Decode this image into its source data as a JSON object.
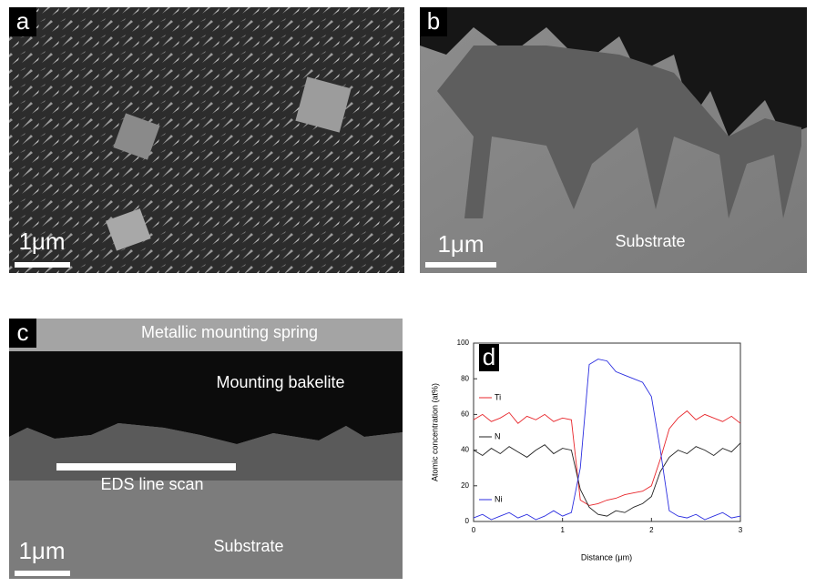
{
  "panels": [
    {
      "label": "a",
      "scale_bar": "1μm"
    },
    {
      "label": "b",
      "scale_bar": "1μm",
      "annotations": [
        "Substrate"
      ]
    },
    {
      "label": "c",
      "scale_bar": "1μm",
      "annotations": [
        "Metallic mounting spring",
        "Mounting bakelite",
        "EDS line scan",
        "Substrate"
      ]
    }
  ],
  "chart_data": {
    "type": "line",
    "label": "d",
    "x_label": "Distance (μm)",
    "y_label": "Atomic concentration (at%)",
    "xlim": [
      0,
      3
    ],
    "ylim": [
      0,
      100
    ],
    "xticks": [
      0,
      1,
      2,
      3
    ],
    "yticks": [
      0,
      20,
      40,
      60,
      80,
      100
    ],
    "x": [
      0,
      0.1,
      0.2,
      0.3,
      0.4,
      0.5,
      0.6,
      0.7,
      0.8,
      0.9,
      1.0,
      1.1,
      1.2,
      1.3,
      1.4,
      1.5,
      1.6,
      1.7,
      1.8,
      1.9,
      2.0,
      2.1,
      2.2,
      2.3,
      2.4,
      2.5,
      2.6,
      2.7,
      2.8,
      2.9,
      3.0
    ],
    "series": [
      {
        "name": "Ti",
        "color": "#e8262b",
        "values": [
          57,
          60,
          56,
          58,
          61,
          55,
          59,
          57,
          60,
          56,
          58,
          57,
          12,
          9,
          10,
          12,
          13,
          15,
          16,
          17,
          20,
          35,
          52,
          58,
          62,
          57,
          60,
          58,
          56,
          59,
          55
        ]
      },
      {
        "name": "N",
        "color": "#222222",
        "values": [
          40,
          37,
          41,
          38,
          42,
          39,
          36,
          40,
          43,
          38,
          41,
          40,
          18,
          8,
          4,
          3,
          6,
          5,
          8,
          10,
          14,
          28,
          36,
          40,
          38,
          42,
          40,
          37,
          41,
          39,
          44
        ]
      },
      {
        "name": "Ni",
        "color": "#2b2ee0",
        "values": [
          2,
          4,
          1,
          3,
          5,
          2,
          4,
          1,
          3,
          6,
          3,
          5,
          30,
          88,
          91,
          90,
          84,
          82,
          80,
          78,
          70,
          40,
          6,
          3,
          2,
          4,
          1,
          3,
          5,
          2,
          3
        ]
      }
    ]
  }
}
